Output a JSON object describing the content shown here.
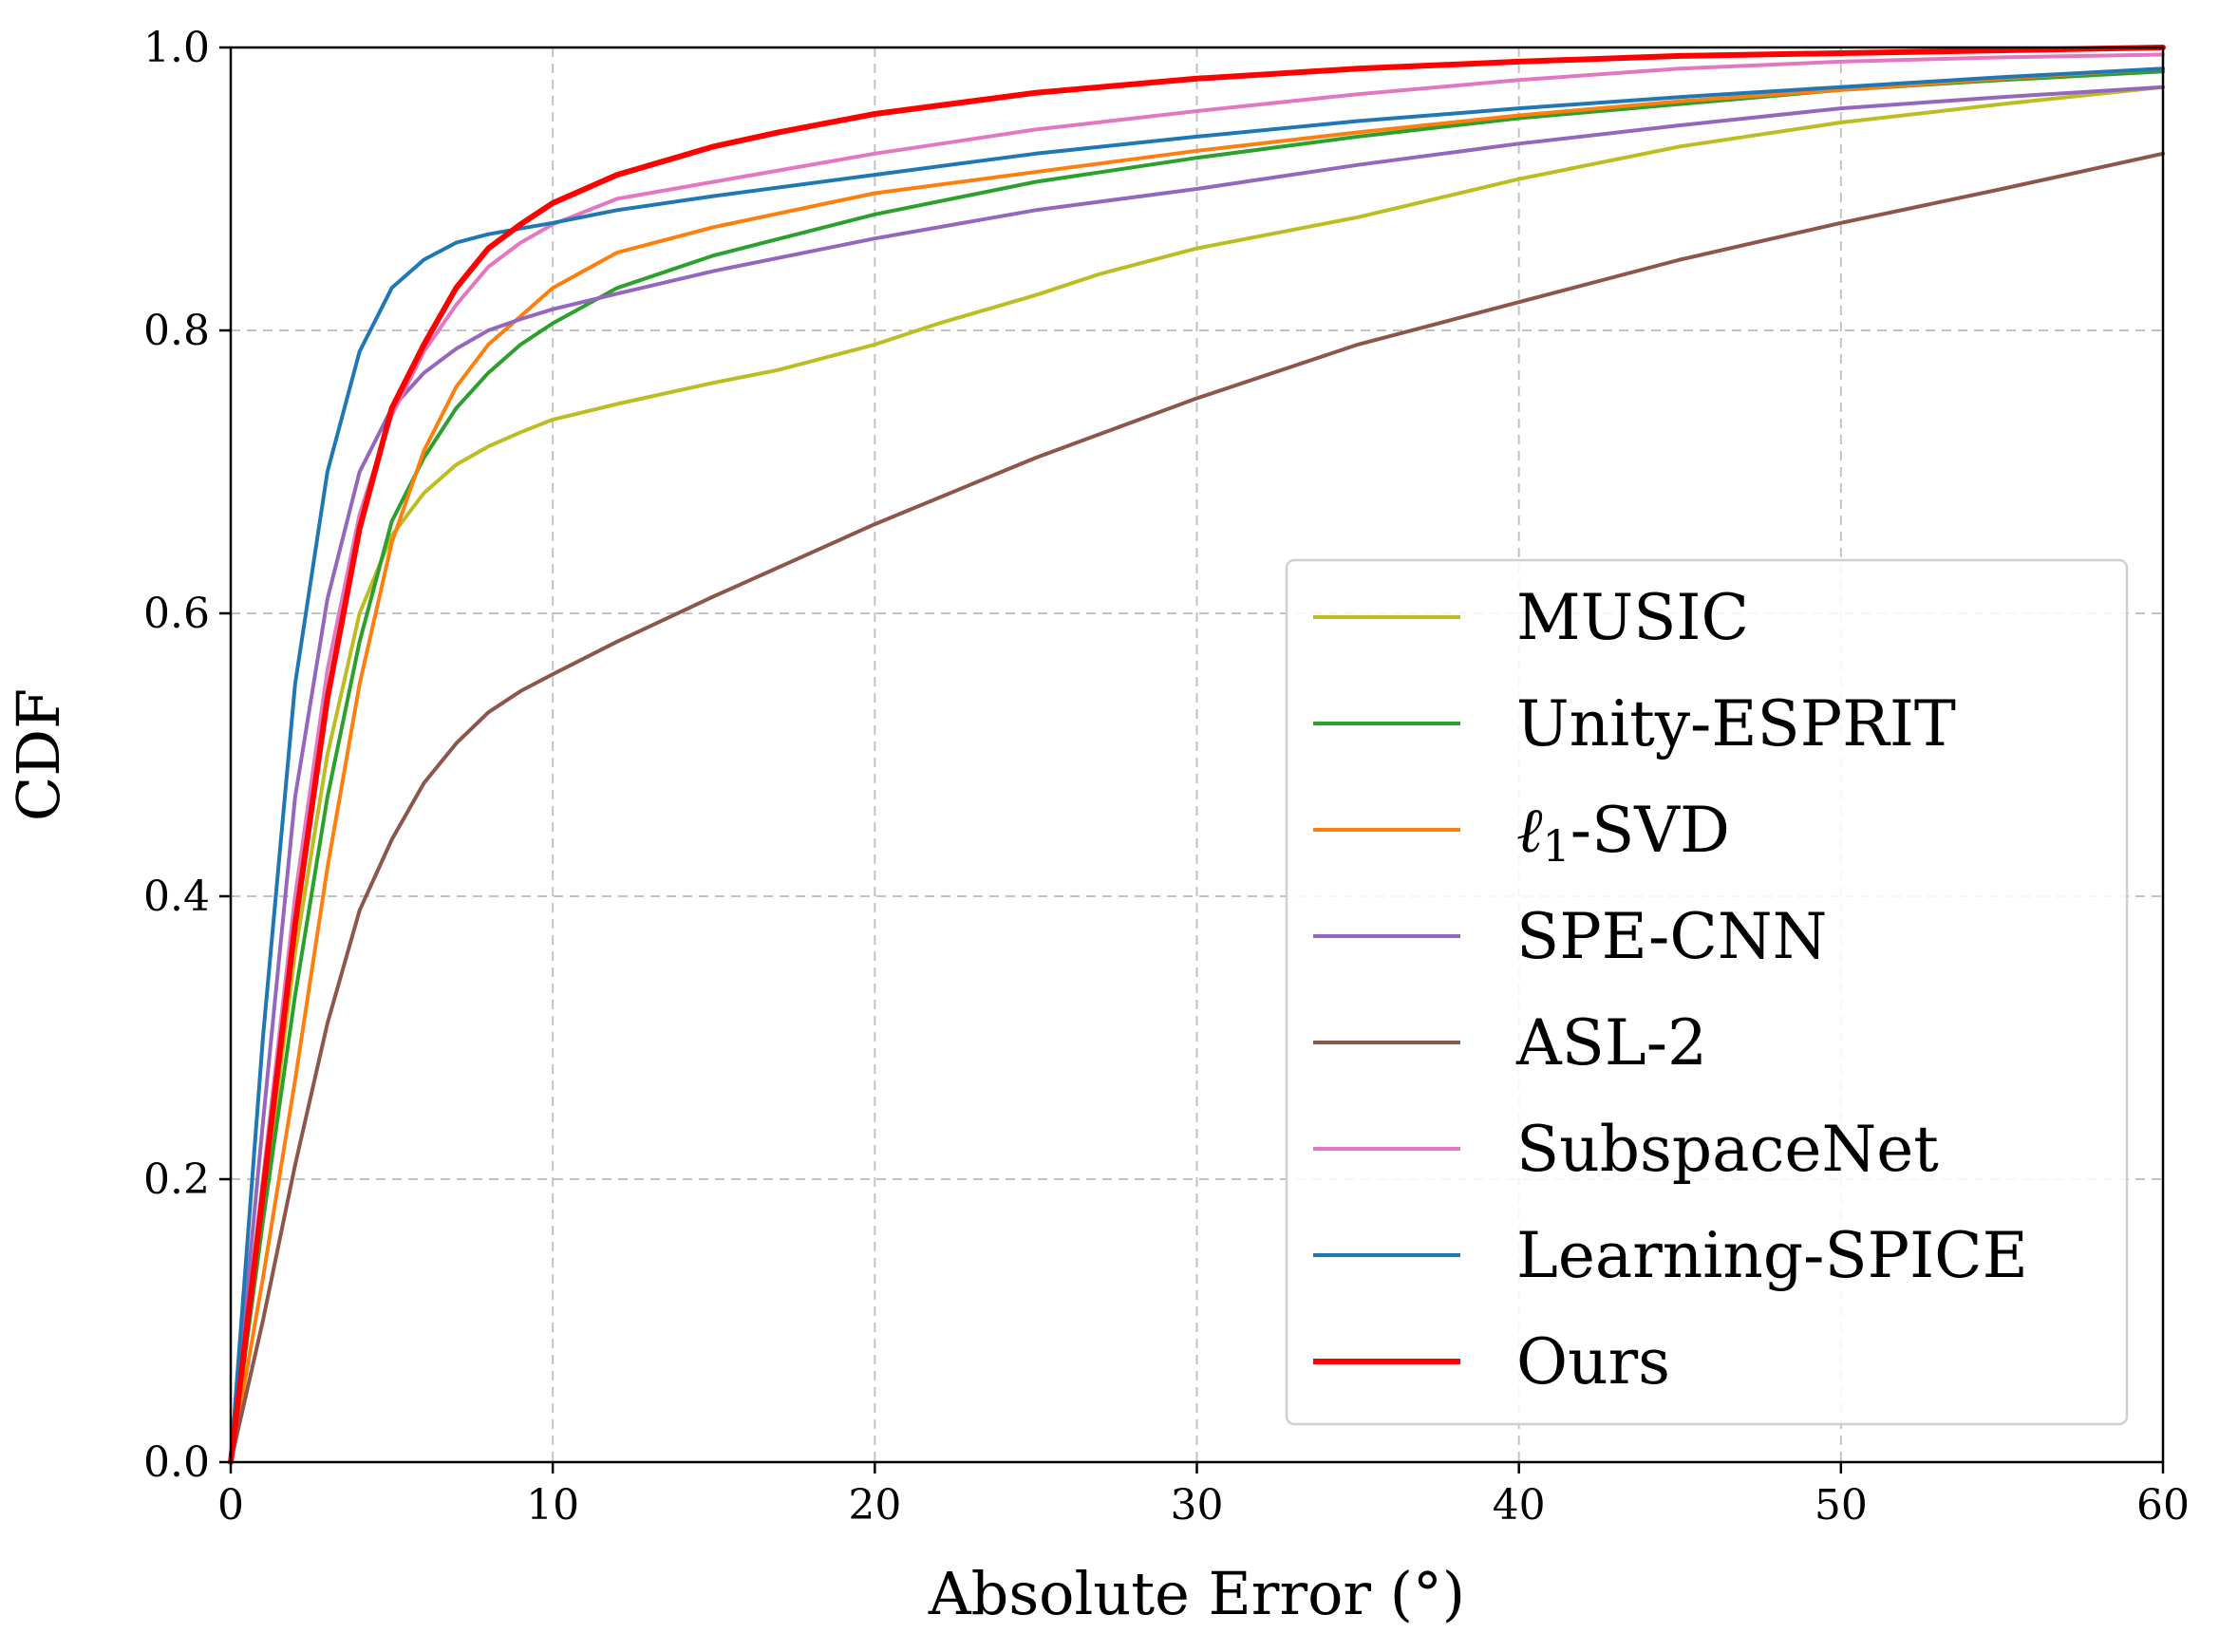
{
  "chart_data": {
    "type": "line",
    "title": "",
    "xlabel": "Absolute Error (°)",
    "ylabel": "CDF",
    "xlim": [
      0,
      60
    ],
    "ylim": [
      0.0,
      1.0
    ],
    "grid": true,
    "legend_position": "lower-right",
    "x_ticks": [
      "0",
      "10",
      "20",
      "30",
      "40",
      "50",
      "60"
    ],
    "y_ticks": [
      "0.0",
      "0.2",
      "0.4",
      "0.6",
      "0.8",
      "1.0"
    ],
    "series": [
      {
        "name": "MUSIC",
        "color": "#bcbd22",
        "x": [
          0,
          1,
          2,
          3,
          4,
          5,
          6,
          7,
          8,
          9,
          10,
          12,
          15,
          17,
          20,
          22,
          25,
          27,
          30,
          35,
          40,
          45,
          50,
          55,
          60
        ],
        "y": [
          0,
          0.18,
          0.36,
          0.5,
          0.6,
          0.655,
          0.685,
          0.705,
          0.718,
          0.728,
          0.737,
          0.748,
          0.763,
          0.772,
          0.79,
          0.805,
          0.825,
          0.84,
          0.858,
          0.88,
          0.907,
          0.93,
          0.947,
          0.96,
          0.972
        ]
      },
      {
        "name": "Unity-ESPRIT",
        "color": "#2ca02c",
        "x": [
          0,
          1,
          2,
          3,
          4,
          5,
          6,
          7,
          8,
          9,
          10,
          12,
          15,
          20,
          25,
          30,
          35,
          40,
          45,
          50,
          55,
          60
        ],
        "y": [
          0,
          0.17,
          0.33,
          0.47,
          0.58,
          0.665,
          0.71,
          0.745,
          0.77,
          0.79,
          0.805,
          0.83,
          0.853,
          0.882,
          0.905,
          0.922,
          0.937,
          0.95,
          0.96,
          0.97,
          0.977,
          0.983
        ]
      },
      {
        "name": "ℓ1-SVD",
        "color": "#ff7f0e",
        "x": [
          0,
          1,
          2,
          3,
          4,
          5,
          6,
          7,
          8,
          9,
          10,
          12,
          15,
          20,
          25,
          30,
          35,
          40,
          45,
          50,
          55,
          60
        ],
        "y": [
          0,
          0.13,
          0.27,
          0.42,
          0.55,
          0.65,
          0.715,
          0.76,
          0.79,
          0.81,
          0.83,
          0.855,
          0.873,
          0.897,
          0.912,
          0.927,
          0.94,
          0.952,
          0.962,
          0.97,
          0.978,
          0.985
        ]
      },
      {
        "name": "SPE-CNN",
        "color": "#9467bd",
        "x": [
          0,
          1,
          2,
          3,
          4,
          5,
          6,
          7,
          8,
          9,
          10,
          12,
          15,
          20,
          25,
          30,
          35,
          40,
          45,
          50,
          55,
          60
        ],
        "y": [
          0,
          0.24,
          0.47,
          0.61,
          0.7,
          0.745,
          0.77,
          0.787,
          0.8,
          0.808,
          0.815,
          0.826,
          0.842,
          0.865,
          0.885,
          0.9,
          0.917,
          0.932,
          0.945,
          0.957,
          0.965,
          0.972
        ]
      },
      {
        "name": "ASL-2",
        "color": "#8c564b",
        "x": [
          0,
          1,
          2,
          3,
          4,
          5,
          6,
          7,
          8,
          9,
          10,
          12,
          15,
          20,
          25,
          30,
          35,
          40,
          45,
          50,
          55,
          60
        ],
        "y": [
          0,
          0.1,
          0.21,
          0.31,
          0.39,
          0.44,
          0.48,
          0.508,
          0.53,
          0.545,
          0.557,
          0.58,
          0.612,
          0.663,
          0.71,
          0.752,
          0.79,
          0.82,
          0.85,
          0.876,
          0.9,
          0.925
        ]
      },
      {
        "name": "SubspaceNet",
        "color": "#e377c2",
        "x": [
          0,
          1,
          2,
          3,
          4,
          5,
          6,
          7,
          8,
          9,
          10,
          12,
          15,
          20,
          25,
          30,
          35,
          40,
          45,
          50,
          55,
          60
        ],
        "y": [
          0,
          0.2,
          0.4,
          0.56,
          0.67,
          0.74,
          0.785,
          0.818,
          0.845,
          0.862,
          0.875,
          0.893,
          0.905,
          0.925,
          0.942,
          0.955,
          0.967,
          0.977,
          0.985,
          0.99,
          0.993,
          0.995
        ]
      },
      {
        "name": "Learning-SPICE",
        "color": "#1f77b4",
        "x": [
          0,
          1,
          2,
          3,
          4,
          5,
          6,
          7,
          8,
          9,
          10,
          12,
          15,
          20,
          25,
          30,
          35,
          40,
          45,
          50,
          55,
          60
        ],
        "y": [
          0,
          0.3,
          0.55,
          0.7,
          0.785,
          0.83,
          0.85,
          0.862,
          0.868,
          0.872,
          0.876,
          0.885,
          0.895,
          0.91,
          0.925,
          0.937,
          0.948,
          0.957,
          0.965,
          0.972,
          0.979,
          0.985
        ]
      },
      {
        "name": "Ours",
        "color": "#ff0000",
        "x": [
          0,
          1,
          2,
          3,
          4,
          5,
          6,
          7,
          8,
          9,
          10,
          12,
          15,
          17,
          20,
          25,
          30,
          35,
          40,
          45,
          50,
          55,
          60
        ],
        "y": [
          0,
          0.19,
          0.38,
          0.54,
          0.66,
          0.745,
          0.79,
          0.83,
          0.858,
          0.875,
          0.89,
          0.91,
          0.93,
          0.94,
          0.953,
          0.968,
          0.978,
          0.985,
          0.99,
          0.994,
          0.996,
          0.998,
          1.0
        ]
      }
    ]
  }
}
